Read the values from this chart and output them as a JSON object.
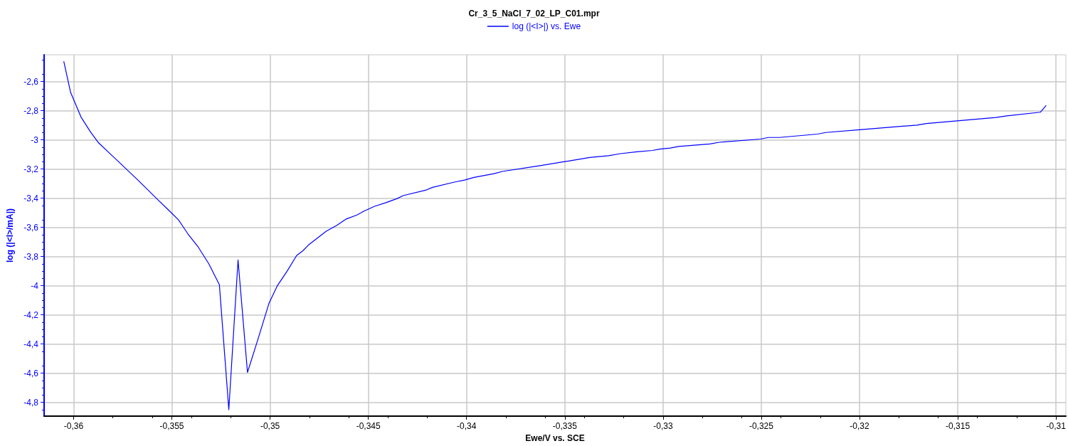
{
  "chart_data": {
    "type": "line",
    "title": "Cr_3_5_NaCl_7_02_LP_C01.mpr",
    "xlabel": "Ewe/V vs. SCE",
    "ylabel": "log (|<I>/mA|)",
    "xlim": [
      -0.3615,
      -0.3095
    ],
    "xticks": [
      {
        "value": -0.36,
        "label": "-0,36"
      },
      {
        "value": -0.355,
        "label": "-0,355"
      },
      {
        "value": -0.35,
        "label": "-0,35"
      },
      {
        "value": -0.345,
        "label": "-0,345"
      },
      {
        "value": -0.34,
        "label": "-0,34"
      },
      {
        "value": -0.335,
        "label": "-0,335"
      },
      {
        "value": -0.33,
        "label": "-0,33"
      },
      {
        "value": -0.325,
        "label": "-0,325"
      },
      {
        "value": -0.32,
        "label": "-0,32"
      },
      {
        "value": -0.315,
        "label": "-0,315"
      },
      {
        "value": -0.31,
        "label": "-0,31"
      }
    ],
    "ylim": [
      -4.894,
      -2.416
    ],
    "yticks": [
      {
        "value": -2.6,
        "label": "-2,6"
      },
      {
        "value": -2.8,
        "label": "-2,8"
      },
      -3,
      {
        "value": -3.2,
        "label": "-3,2"
      },
      {
        "value": -3.4,
        "label": "-3,4"
      },
      {
        "value": -3.6,
        "label": "-3,6"
      },
      {
        "value": -3.8,
        "label": "-3,8"
      },
      -4,
      {
        "value": -4.2,
        "label": "-4,2"
      },
      {
        "value": -4.4,
        "label": "-4,4"
      },
      {
        "value": -4.6,
        "label": "-4,6"
      },
      {
        "value": -4.8,
        "label": "-4,8"
      }
    ],
    "grid": true,
    "legend": "top",
    "marker": "none",
    "line_style": "solid",
    "series": [
      {
        "name": "log (|<I>|) vs. Ewe",
        "color": "#0000ff",
        "x": [
          -0.3605,
          -0.36015,
          -0.35961,
          -0.35913,
          -0.35872,
          -0.35817,
          -0.35769,
          -0.3567,
          -0.35569,
          -0.35515,
          -0.35466,
          -0.35419,
          -0.35367,
          -0.35312,
          -0.35258,
          -0.3521,
          -0.35163,
          -0.35115,
          -0.35067,
          -0.35005,
          -0.34964,
          -0.34912,
          -0.34865,
          -0.34834,
          -0.34804,
          -0.34714,
          -0.3466,
          -0.34612,
          -0.34558,
          -0.34522,
          -0.34468,
          -0.34413,
          -0.34353,
          -0.34323,
          -0.34209,
          -0.34173,
          -0.34058,
          -0.3401,
          -0.33962,
          -0.3386,
          -0.33818,
          -0.33638,
          -0.33511,
          -0.33481,
          -0.33373,
          -0.33277,
          -0.33217,
          -0.33133,
          -0.33053,
          -0.33018,
          -0.32963,
          -0.32921,
          -0.32762,
          -0.32713,
          -0.32505,
          -0.32464,
          -0.32408,
          -0.32214,
          -0.32172,
          -0.31999,
          -0.31707,
          -0.31659,
          -0.31492,
          -0.31305,
          -0.3125,
          -0.3108,
          -0.3105
        ],
        "values": [
          -2.461,
          -2.675,
          -2.846,
          -2.947,
          -3.021,
          -3.091,
          -3.152,
          -3.279,
          -3.413,
          -3.483,
          -3.548,
          -3.643,
          -3.732,
          -3.849,
          -3.993,
          -4.85,
          -3.823,
          -4.594,
          -4.39,
          -4.118,
          -4.002,
          -3.897,
          -3.793,
          -3.761,
          -3.72,
          -3.626,
          -3.585,
          -3.542,
          -3.515,
          -3.488,
          -3.455,
          -3.431,
          -3.402,
          -3.382,
          -3.345,
          -3.325,
          -3.288,
          -3.275,
          -3.257,
          -3.231,
          -3.216,
          -3.179,
          -3.151,
          -3.145,
          -3.12,
          -3.108,
          -3.094,
          -3.081,
          -3.072,
          -3.063,
          -3.056,
          -3.045,
          -3.028,
          -3.016,
          -2.994,
          -2.983,
          -2.983,
          -2.96,
          -2.949,
          -2.93,
          -2.898,
          -2.887,
          -2.868,
          -2.846,
          -2.835,
          -2.81,
          -2.763
        ]
      }
    ]
  }
}
